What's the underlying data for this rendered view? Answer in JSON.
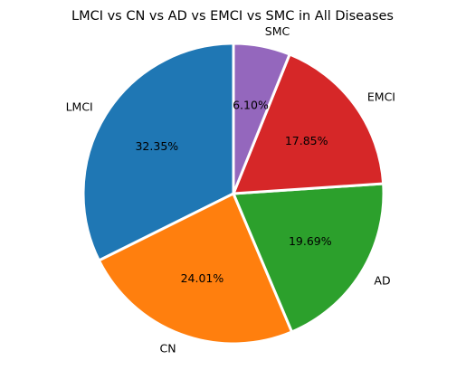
{
  "chart_data": {
    "type": "pie",
    "title": "LMCI vs CN vs AD vs EMCI vs SMC in All Diseases",
    "start_angle_deg": 90,
    "direction": "counterclockwise",
    "slices": [
      {
        "label": "LMCI",
        "value": 32.35,
        "pct_label": "32.35%",
        "color": "#1f77b4"
      },
      {
        "label": "CN",
        "value": 24.01,
        "pct_label": "24.01%",
        "color": "#ff7f0e"
      },
      {
        "label": "AD",
        "value": 19.69,
        "pct_label": "19.69%",
        "color": "#2ca02c"
      },
      {
        "label": "EMCI",
        "value": 17.85,
        "pct_label": "17.85%",
        "color": "#d62728"
      },
      {
        "label": "SMC",
        "value": 6.1,
        "pct_label": "6.10%",
        "color": "#9467bd"
      }
    ],
    "slice_edge_color": "#ffffff"
  }
}
